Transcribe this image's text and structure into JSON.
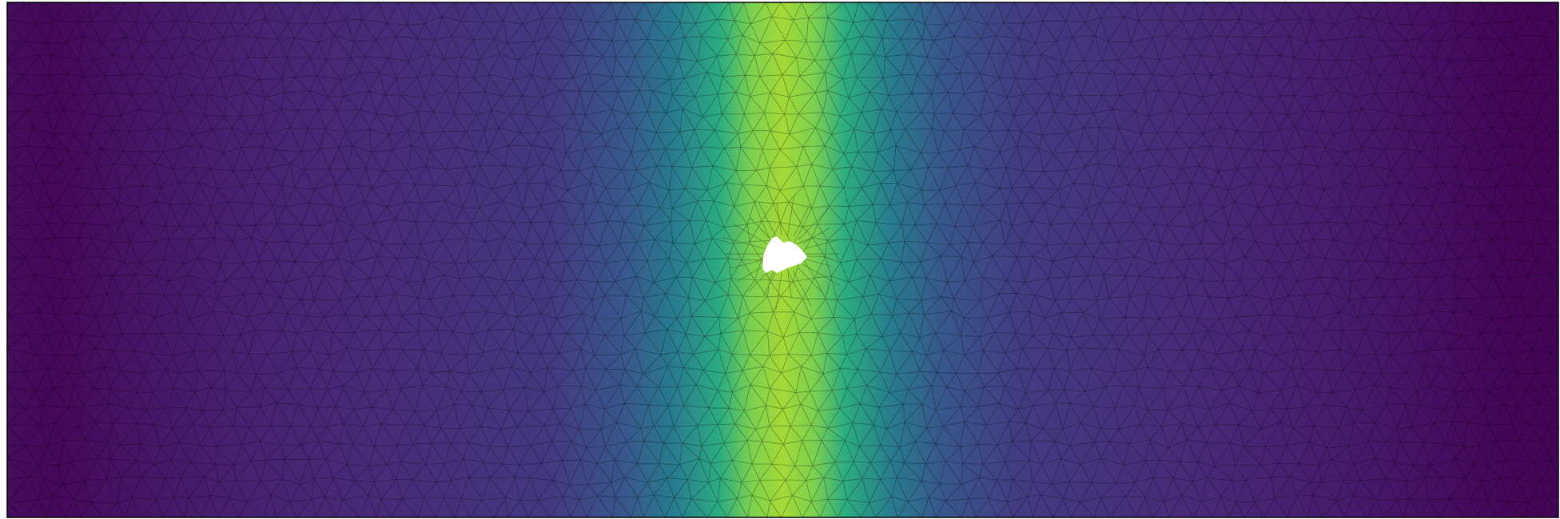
{
  "figure": {
    "type": "triangular-mesh-field",
    "colormap": "viridis",
    "colormap_stops": [
      "#440154",
      "#482878",
      "#3e4989",
      "#31688e",
      "#26828e",
      "#1f9e89",
      "#35b779",
      "#6ece58",
      "#b5de2b",
      "#fde725"
    ],
    "background_color": "#ffffff",
    "mesh_edge_color": "#000000",
    "border_color": "#000000",
    "hole_color": "#ffffff"
  },
  "field_profile": {
    "description_of_shape": "vertical band, peak at domain center, low at both side edges",
    "x": [
      0.0,
      0.03,
      0.08,
      0.15,
      0.25,
      0.35,
      0.4,
      0.43,
      0.46,
      0.48,
      0.5,
      0.52,
      0.54,
      0.57,
      0.6,
      0.65,
      0.75,
      0.85,
      0.92,
      0.97,
      1.0
    ],
    "value": [
      0.03,
      0.02,
      0.05,
      0.09,
      0.12,
      0.17,
      0.28,
      0.42,
      0.62,
      0.8,
      0.86,
      0.8,
      0.62,
      0.42,
      0.28,
      0.18,
      0.12,
      0.08,
      0.04,
      0.01,
      0.01
    ]
  }
}
